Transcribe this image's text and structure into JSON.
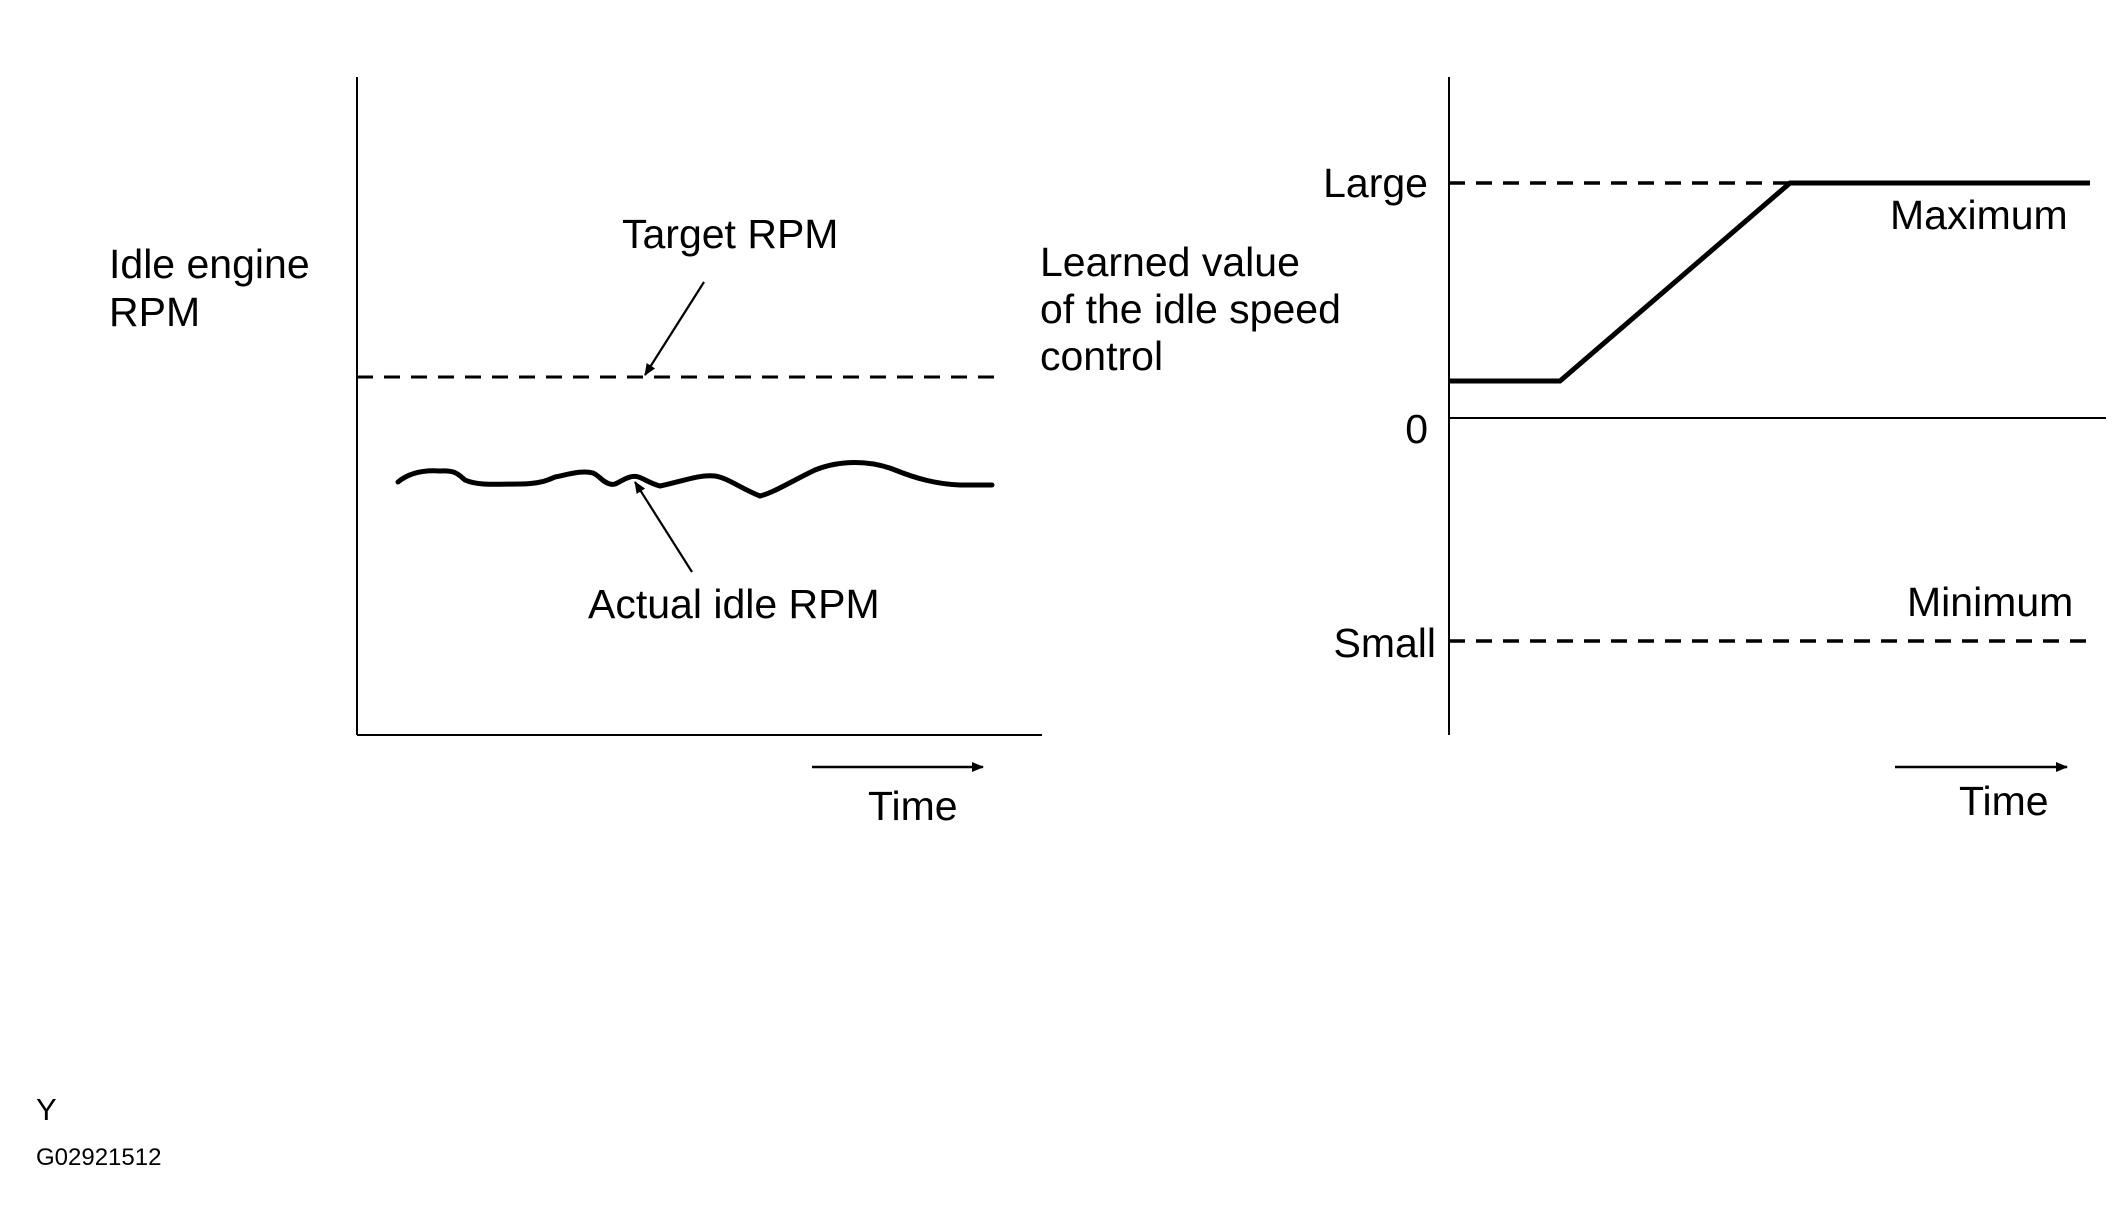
{
  "left_chart": {
    "y_label_line1": "Idle engine",
    "y_label_line2": "RPM",
    "target_label": "Target RPM",
    "actual_label": "Actual idle RPM",
    "time_label": "Time"
  },
  "right_chart": {
    "y_label_line1": "Learned value",
    "y_label_line2": "of the idle speed",
    "y_label_line3": "control",
    "tick_large": "Large",
    "tick_zero": "0",
    "tick_small": "Small",
    "maximum_label": "Maximum",
    "minimum_label": "Minimum",
    "time_label": "Time"
  },
  "footer": {
    "code_letter": "Y",
    "figure_id": "G02921512"
  },
  "colors": {
    "ink": "#000000",
    "background": "#ffffff"
  }
}
